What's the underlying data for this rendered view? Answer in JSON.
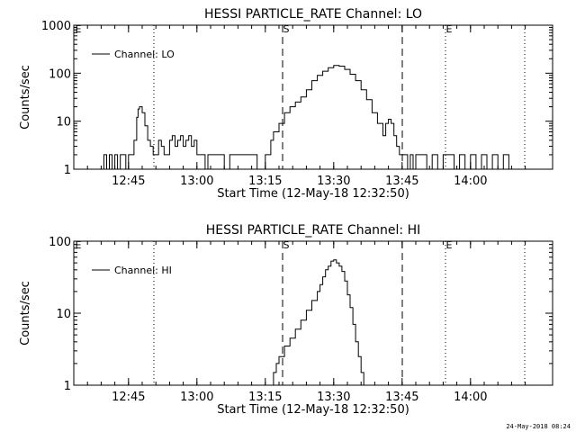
{
  "timestamp": "24-May-2018 08:24",
  "chart_data": [
    {
      "type": "line",
      "title": "HESSI PARTICLE_RATE Channel: LO",
      "xlabel": "Start Time (12-May-18 12:32:50)",
      "ylabel": "Counts/sec",
      "y_scale": "log",
      "ylim": [
        1,
        1000
      ],
      "yticks": [
        1,
        10,
        100,
        1000
      ],
      "ytick_labels": [
        "1",
        "10",
        "100",
        "1000"
      ],
      "xlim": [
        12.55,
        14.3
      ],
      "xticks": [
        12.75,
        13.0,
        13.25,
        13.5,
        13.75,
        14.0
      ],
      "xtick_labels": [
        "12:45",
        "13:00",
        "13:15",
        "13:30",
        "13:45",
        "14:00"
      ],
      "legend": "top-left",
      "series": [
        {
          "name": "Channel: LO",
          "x": [
            12.65,
            12.66,
            12.67,
            12.675,
            12.68,
            12.69,
            12.7,
            12.705,
            12.71,
            12.72,
            12.73,
            12.74,
            12.75,
            12.76,
            12.77,
            12.78,
            12.785,
            12.79,
            12.8,
            12.81,
            12.82,
            12.83,
            12.84,
            12.85,
            12.86,
            12.87,
            12.88,
            12.89,
            12.9,
            12.91,
            12.92,
            12.93,
            12.94,
            12.95,
            12.96,
            12.97,
            12.98,
            12.99,
            13.0,
            13.01,
            13.02,
            13.03,
            13.04,
            13.05,
            13.06,
            13.08,
            13.1,
            13.12,
            13.14,
            13.16,
            13.18,
            13.2,
            13.22,
            13.25,
            13.27,
            13.28,
            13.3,
            13.32,
            13.34,
            13.36,
            13.38,
            13.4,
            13.42,
            13.44,
            13.46,
            13.48,
            13.5,
            13.52,
            13.54,
            13.56,
            13.58,
            13.6,
            13.62,
            13.64,
            13.66,
            13.68,
            13.69,
            13.7,
            13.71,
            13.72,
            13.73,
            13.74,
            13.75,
            13.76,
            13.77,
            13.78,
            13.79,
            13.8,
            13.82,
            13.84,
            13.86,
            13.88,
            13.9,
            13.92,
            13.94,
            13.96,
            13.98,
            14.0,
            14.02,
            14.04,
            14.06,
            14.08,
            14.1,
            14.12,
            14.14
          ],
          "y": [
            1,
            2,
            1,
            1,
            2,
            1,
            2,
            2,
            1,
            2,
            2,
            1,
            2,
            2,
            4,
            12,
            18,
            20,
            15,
            8,
            4,
            3,
            2,
            2,
            4,
            3,
            2,
            2,
            4,
            5,
            3,
            4,
            5,
            3,
            4,
            5,
            3,
            4,
            2,
            2,
            2,
            1,
            2,
            2,
            2,
            2,
            1,
            2,
            2,
            2,
            2,
            2,
            1,
            2,
            4,
            6,
            9,
            15,
            20,
            25,
            32,
            45,
            70,
            90,
            110,
            130,
            145,
            140,
            120,
            95,
            70,
            45,
            28,
            15,
            9,
            5,
            9,
            11,
            9,
            5,
            3,
            2,
            2,
            2,
            1,
            2,
            1,
            2,
            2,
            1,
            2,
            1,
            2,
            2,
            1,
            2,
            1,
            2,
            1,
            2,
            1,
            2,
            1,
            2,
            1
          ]
        }
      ],
      "annotations": [
        "S",
        "E"
      ]
    },
    {
      "type": "line",
      "title": "HESSI PARTICLE_RATE Channel: HI",
      "xlabel": "Start Time (12-May-18 12:32:50)",
      "ylabel": "Counts/sec",
      "y_scale": "log",
      "ylim": [
        1,
        100
      ],
      "yticks": [
        1,
        10,
        100
      ],
      "ytick_labels": [
        "1",
        "10",
        "100"
      ],
      "xlim": [
        12.55,
        14.3
      ],
      "xticks": [
        12.75,
        13.0,
        13.25,
        13.5,
        13.75,
        14.0
      ],
      "xtick_labels": [
        "12:45",
        "13:00",
        "13:15",
        "13:30",
        "13:45",
        "14:00"
      ],
      "legend": "top-left",
      "series": [
        {
          "name": "Channel: HI",
          "x": [
            13.27,
            13.28,
            13.29,
            13.3,
            13.32,
            13.34,
            13.36,
            13.38,
            13.4,
            13.42,
            13.44,
            13.45,
            13.46,
            13.47,
            13.48,
            13.49,
            13.5,
            13.51,
            13.52,
            13.53,
            13.54,
            13.55,
            13.56,
            13.57,
            13.58,
            13.59,
            13.6,
            13.61
          ],
          "y": [
            1,
            1.5,
            2,
            2.5,
            3.5,
            4.5,
            6,
            8,
            11,
            15,
            20,
            25,
            32,
            40,
            45,
            53,
            55,
            50,
            45,
            38,
            28,
            18,
            12,
            7,
            4,
            2.5,
            1.5,
            1
          ]
        }
      ],
      "annotations": [
        "S",
        "E"
      ]
    }
  ]
}
